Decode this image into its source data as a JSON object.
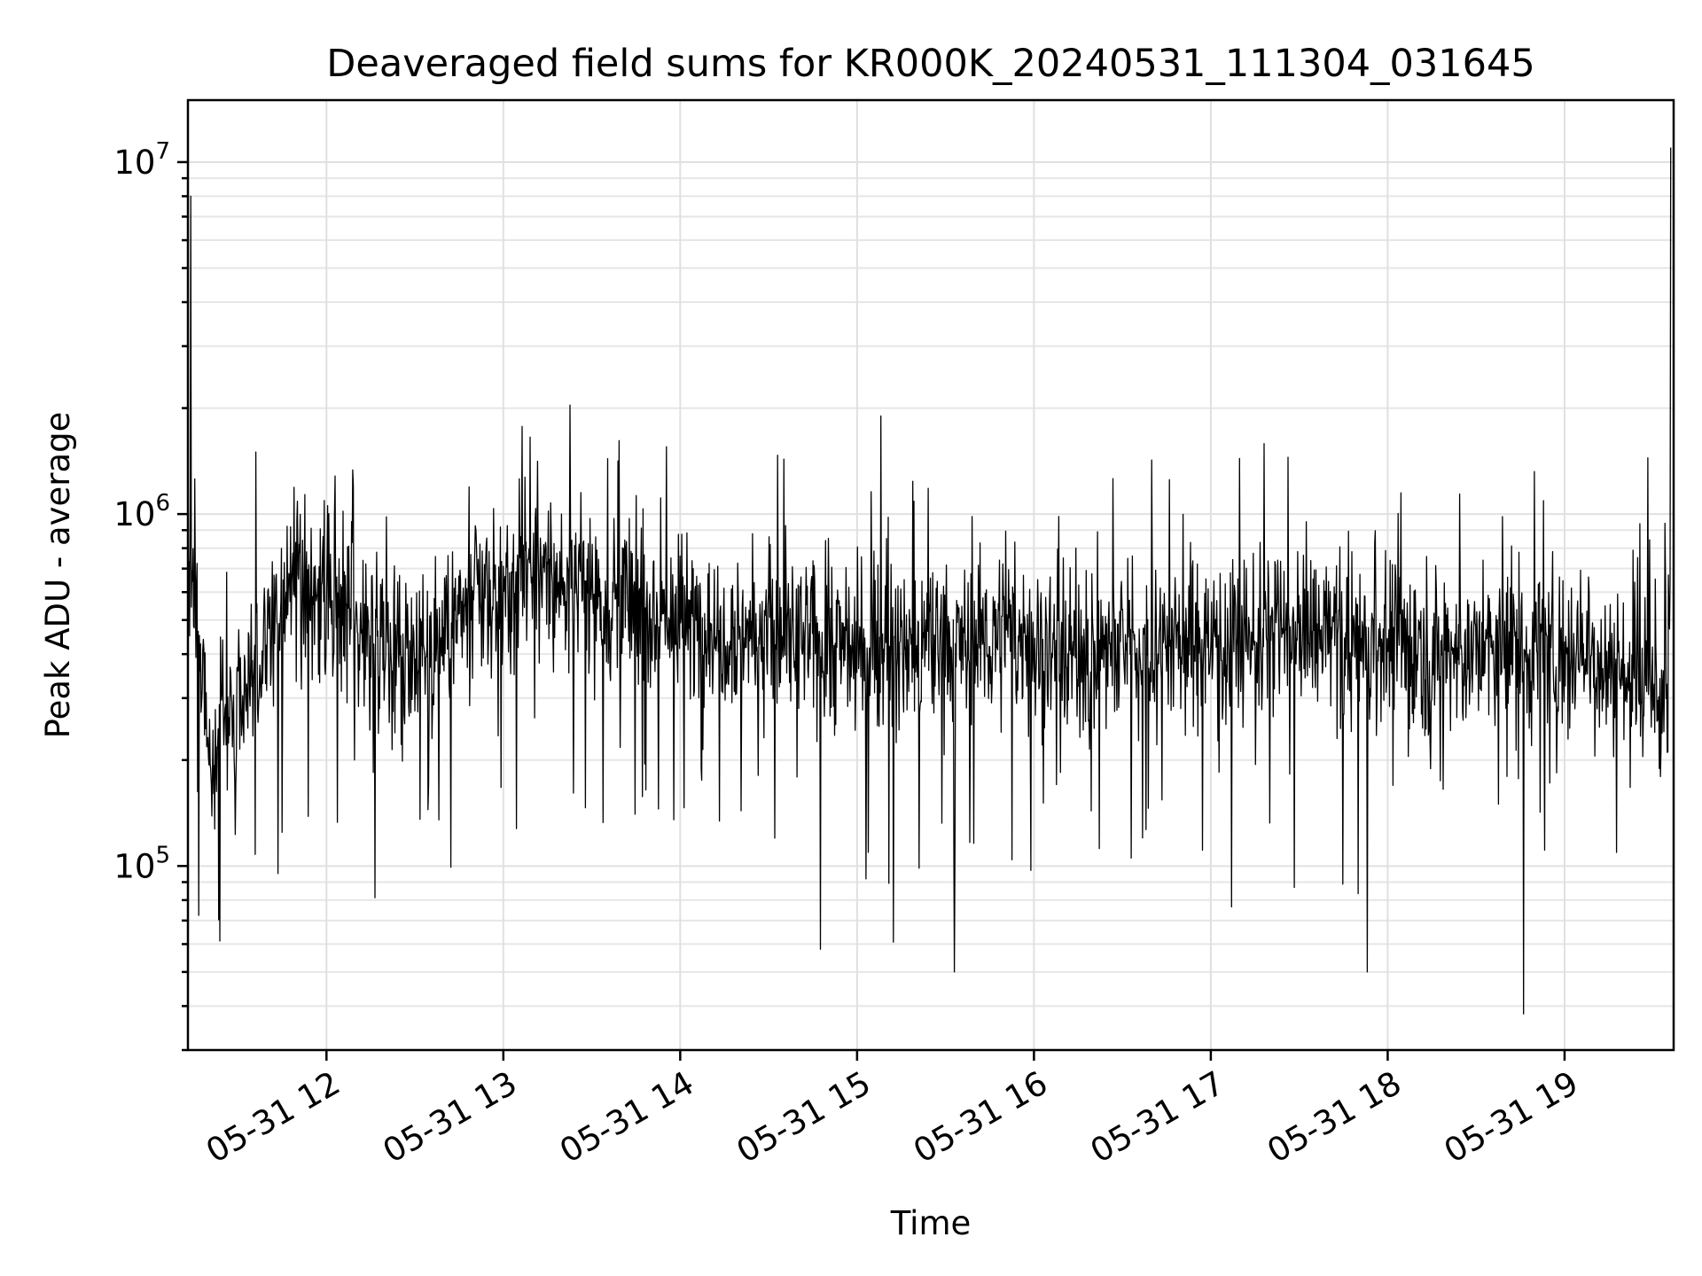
{
  "chart_data": {
    "type": "line",
    "title": "Deaveraged field sums for KR000K_20240531_111304_031645",
    "xlabel": "Time",
    "ylabel": "Peak ADU - average",
    "yscale": "log",
    "ylim": [
      30000,
      15000000
    ],
    "xlim": [
      "2024-05-31T11:13",
      "2024-05-31T19:37"
    ],
    "x_ticks": [
      {
        "time": "2024-05-31T12:00",
        "label": "05-31 12"
      },
      {
        "time": "2024-05-31T13:00",
        "label": "05-31 13"
      },
      {
        "time": "2024-05-31T14:00",
        "label": "05-31 14"
      },
      {
        "time": "2024-05-31T15:00",
        "label": "05-31 15"
      },
      {
        "time": "2024-05-31T16:00",
        "label": "05-31 16"
      },
      {
        "time": "2024-05-31T17:00",
        "label": "05-31 17"
      },
      {
        "time": "2024-05-31T18:00",
        "label": "05-31 18"
      },
      {
        "time": "2024-05-31T19:00",
        "label": "05-31 19"
      }
    ],
    "y_ticks": [
      {
        "value": 100000,
        "base": "10",
        "exp": "5"
      },
      {
        "value": 1000000,
        "base": "10",
        "exp": "6"
      },
      {
        "value": 10000000,
        "base": "10",
        "exp": "7"
      }
    ],
    "grid": true,
    "line_color": "#000000",
    "series": [
      {
        "x": [
          "2024-05-31T11:15",
          "2024-05-31T11:20",
          "2024-05-31T11:25",
          "2024-05-31T11:30",
          "2024-05-31T11:40",
          "2024-05-31T11:50",
          "2024-05-31T12:00",
          "2024-05-31T12:15",
          "2024-05-31T12:30",
          "2024-05-31T12:45",
          "2024-05-31T13:00",
          "2024-05-31T13:15",
          "2024-05-31T13:30",
          "2024-05-31T13:45",
          "2024-05-31T14:00",
          "2024-05-31T14:15",
          "2024-05-31T14:30",
          "2024-05-31T14:45",
          "2024-05-31T15:00",
          "2024-05-31T15:15",
          "2024-05-31T15:30",
          "2024-05-31T15:45",
          "2024-05-31T16:00",
          "2024-05-31T16:15",
          "2024-05-31T16:30",
          "2024-05-31T16:45",
          "2024-05-31T17:00",
          "2024-05-31T17:15",
          "2024-05-31T17:30",
          "2024-05-31T17:45",
          "2024-05-31T18:00",
          "2024-05-31T18:15",
          "2024-05-31T18:30",
          "2024-05-31T18:45",
          "2024-05-31T19:00",
          "2024-05-31T19:15",
          "2024-05-31T19:30",
          "2024-05-31T19:35",
          "2024-05-31T19:36"
        ],
        "y": [
          700000,
          200000,
          250000,
          300000,
          450000,
          600000,
          550000,
          450000,
          400000,
          500000,
          600000,
          650000,
          600000,
          550000,
          500000,
          480000,
          450000,
          430000,
          420000,
          400000,
          420000,
          450000,
          430000,
          400000,
          420000,
          430000,
          440000,
          450000,
          460000,
          440000,
          430000,
          420000,
          400000,
          410000,
          420000,
          380000,
          300000,
          320000,
          700000
        ]
      }
    ],
    "extremes": [
      {
        "x": "2024-05-31T11:14",
        "y": 8000000
      },
      {
        "x": "2024-05-31T11:36",
        "y": 1500000
      },
      {
        "x": "2024-05-31T15:08",
        "y": 1900000
      },
      {
        "x": "2024-05-31T18:46",
        "y": 38000
      },
      {
        "x": "2024-05-31T15:33",
        "y": 50000
      },
      {
        "x": "2024-05-31T17:53",
        "y": 50000
      },
      {
        "x": "2024-05-31T19:36",
        "y": 11000000
      }
    ]
  }
}
